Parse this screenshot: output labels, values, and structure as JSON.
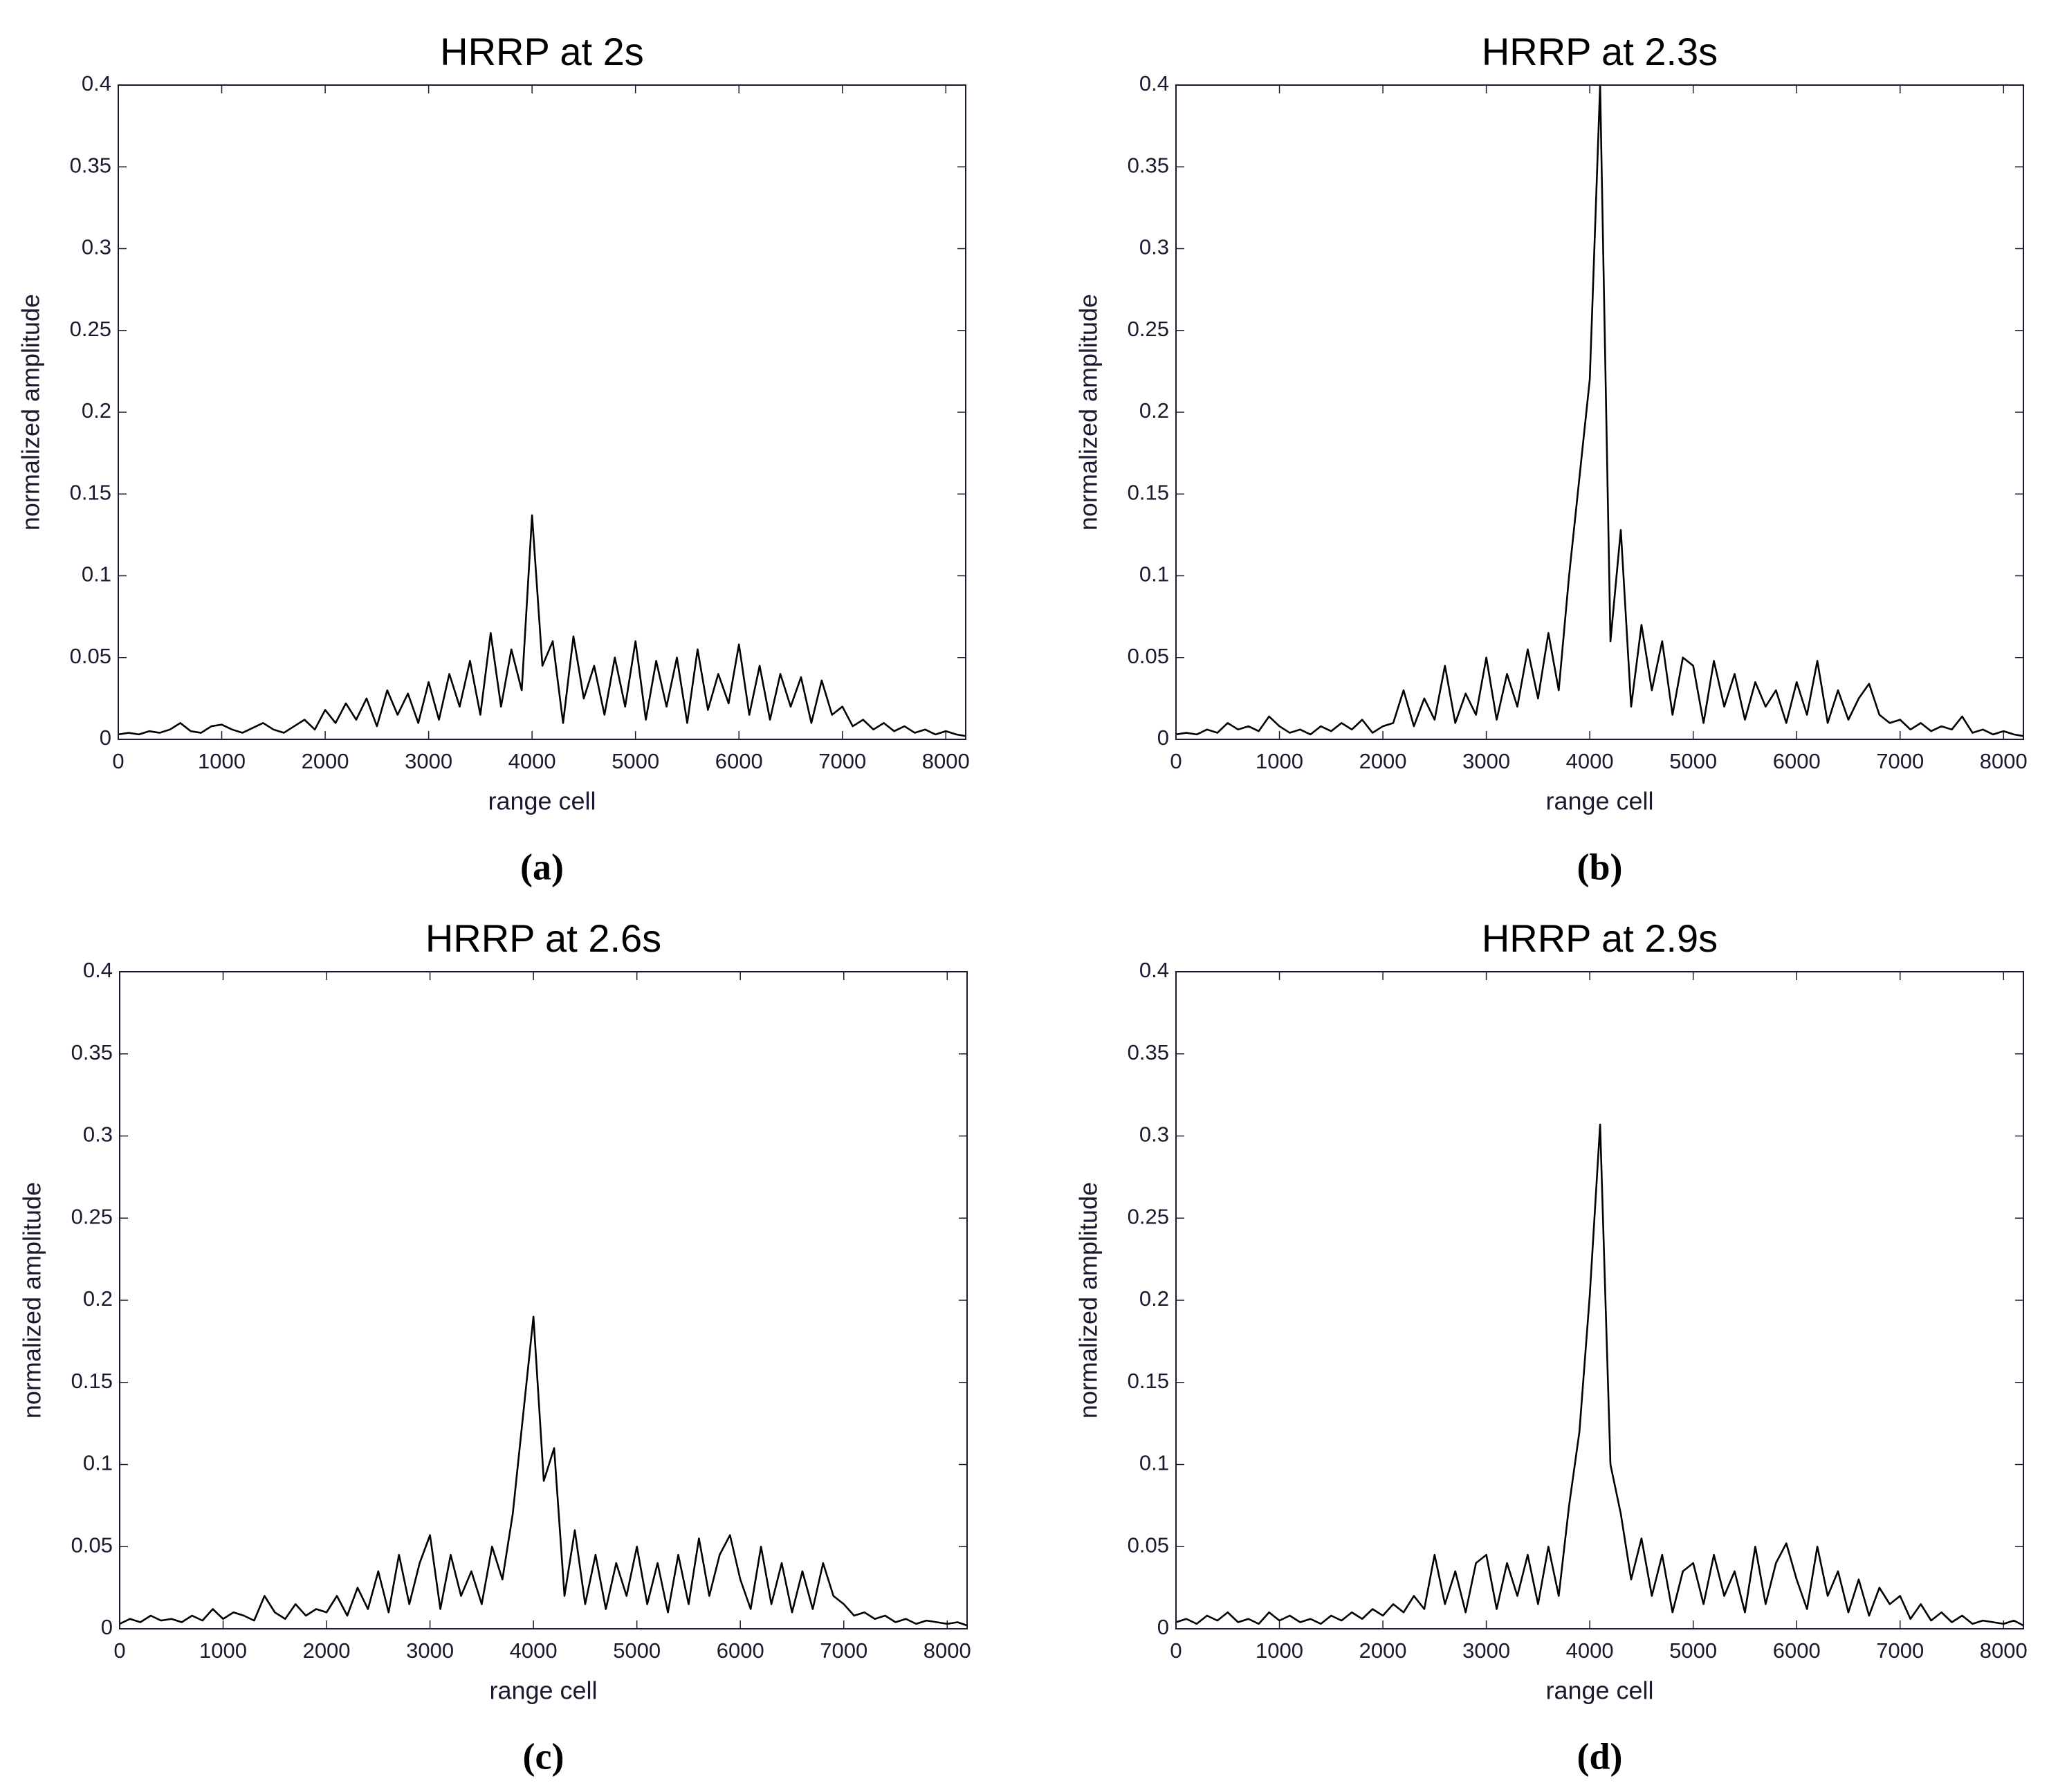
{
  "chart_data": [
    {
      "type": "line",
      "title": "HRRP at 2s",
      "caption": "(a)",
      "x_label": "range cell",
      "y_label": "normalized amplitude",
      "color": "#000000",
      "xlim": [
        0,
        8192
      ],
      "ylim": [
        0,
        0.4
      ],
      "xticks": [
        0,
        1000,
        2000,
        3000,
        4000,
        5000,
        6000,
        7000,
        8000
      ],
      "yticks": [
        0,
        0.05,
        0.1,
        0.15,
        0.2,
        0.25,
        0.3,
        0.35,
        0.4
      ],
      "x": [
        0,
        100,
        200,
        300,
        400,
        500,
        600,
        700,
        800,
        900,
        1000,
        1100,
        1200,
        1300,
        1400,
        1500,
        1600,
        1700,
        1800,
        1900,
        2000,
        2100,
        2200,
        2300,
        2400,
        2500,
        2600,
        2700,
        2800,
        2900,
        3000,
        3100,
        3200,
        3300,
        3400,
        3500,
        3600,
        3700,
        3800,
        3900,
        4000,
        4100,
        4200,
        4300,
        4400,
        4500,
        4600,
        4700,
        4800,
        4900,
        5000,
        5100,
        5200,
        5300,
        5400,
        5500,
        5600,
        5700,
        5800,
        5900,
        6000,
        6100,
        6200,
        6300,
        6400,
        6500,
        6600,
        6700,
        6800,
        6900,
        7000,
        7100,
        7200,
        7300,
        7400,
        7500,
        7600,
        7700,
        7800,
        7900,
        8000,
        8100,
        8192
      ],
      "values": [
        0.003,
        0.004,
        0.003,
        0.005,
        0.004,
        0.006,
        0.01,
        0.005,
        0.004,
        0.008,
        0.009,
        0.006,
        0.004,
        0.007,
        0.01,
        0.006,
        0.004,
        0.008,
        0.012,
        0.006,
        0.018,
        0.01,
        0.022,
        0.012,
        0.025,
        0.008,
        0.03,
        0.015,
        0.028,
        0.01,
        0.035,
        0.012,
        0.04,
        0.02,
        0.048,
        0.015,
        0.065,
        0.02,
        0.055,
        0.03,
        0.137,
        0.045,
        0.06,
        0.01,
        0.063,
        0.025,
        0.045,
        0.015,
        0.05,
        0.02,
        0.06,
        0.012,
        0.048,
        0.02,
        0.05,
        0.01,
        0.055,
        0.018,
        0.04,
        0.022,
        0.058,
        0.015,
        0.045,
        0.012,
        0.04,
        0.02,
        0.038,
        0.01,
        0.036,
        0.015,
        0.02,
        0.008,
        0.012,
        0.006,
        0.01,
        0.005,
        0.008,
        0.004,
        0.006,
        0.003,
        0.005,
        0.003,
        0.002
      ]
    },
    {
      "type": "line",
      "title": "HRRP at 2.3s",
      "caption": "(b)",
      "x_label": "range cell",
      "y_label": "normalized amplitude",
      "color": "#000000",
      "xlim": [
        0,
        8192
      ],
      "ylim": [
        0,
        0.4
      ],
      "xticks": [
        0,
        1000,
        2000,
        3000,
        4000,
        5000,
        6000,
        7000,
        8000
      ],
      "yticks": [
        0,
        0.05,
        0.1,
        0.15,
        0.2,
        0.25,
        0.3,
        0.35,
        0.4
      ],
      "x": [
        0,
        100,
        200,
        300,
        400,
        500,
        600,
        700,
        800,
        900,
        1000,
        1100,
        1200,
        1300,
        1400,
        1500,
        1600,
        1700,
        1800,
        1900,
        2000,
        2100,
        2200,
        2300,
        2400,
        2500,
        2600,
        2700,
        2800,
        2900,
        3000,
        3100,
        3200,
        3300,
        3400,
        3500,
        3600,
        3700,
        3800,
        3900,
        4000,
        4100,
        4200,
        4300,
        4400,
        4500,
        4600,
        4700,
        4800,
        4900,
        5000,
        5100,
        5200,
        5300,
        5400,
        5500,
        5600,
        5700,
        5800,
        5900,
        6000,
        6100,
        6200,
        6300,
        6400,
        6500,
        6600,
        6700,
        6800,
        6900,
        7000,
        7100,
        7200,
        7300,
        7400,
        7500,
        7600,
        7700,
        7800,
        7900,
        8000,
        8100,
        8192
      ],
      "values": [
        0.003,
        0.004,
        0.003,
        0.006,
        0.004,
        0.01,
        0.006,
        0.008,
        0.005,
        0.014,
        0.008,
        0.004,
        0.006,
        0.003,
        0.008,
        0.005,
        0.01,
        0.006,
        0.012,
        0.004,
        0.008,
        0.01,
        0.03,
        0.008,
        0.025,
        0.012,
        0.045,
        0.01,
        0.028,
        0.015,
        0.05,
        0.012,
        0.04,
        0.02,
        0.055,
        0.025,
        0.065,
        0.03,
        0.1,
        0.16,
        0.22,
        0.4,
        0.06,
        0.128,
        0.02,
        0.07,
        0.03,
        0.06,
        0.015,
        0.05,
        0.045,
        0.01,
        0.048,
        0.02,
        0.04,
        0.012,
        0.035,
        0.02,
        0.03,
        0.01,
        0.035,
        0.015,
        0.048,
        0.01,
        0.03,
        0.012,
        0.025,
        0.034,
        0.015,
        0.01,
        0.012,
        0.006,
        0.01,
        0.005,
        0.008,
        0.006,
        0.014,
        0.004,
        0.006,
        0.003,
        0.005,
        0.003,
        0.002
      ]
    },
    {
      "type": "line",
      "title": "HRRP at 2.6s",
      "caption": "(c)",
      "x_label": "range cell",
      "y_label": "normalized amplitude",
      "color": "#000000",
      "xlim": [
        0,
        8192
      ],
      "ylim": [
        0,
        0.4
      ],
      "xticks": [
        0,
        1000,
        2000,
        3000,
        4000,
        5000,
        6000,
        7000,
        8000
      ],
      "yticks": [
        0,
        0.05,
        0.1,
        0.15,
        0.2,
        0.25,
        0.3,
        0.35,
        0.4
      ],
      "x": [
        0,
        100,
        200,
        300,
        400,
        500,
        600,
        700,
        800,
        900,
        1000,
        1100,
        1200,
        1300,
        1400,
        1500,
        1600,
        1700,
        1800,
        1900,
        2000,
        2100,
        2200,
        2300,
        2400,
        2500,
        2600,
        2700,
        2800,
        2900,
        3000,
        3100,
        3200,
        3300,
        3400,
        3500,
        3600,
        3700,
        3800,
        3900,
        4000,
        4100,
        4200,
        4300,
        4400,
        4500,
        4600,
        4700,
        4800,
        4900,
        5000,
        5100,
        5200,
        5300,
        5400,
        5500,
        5600,
        5700,
        5800,
        5900,
        6000,
        6100,
        6200,
        6300,
        6400,
        6500,
        6600,
        6700,
        6800,
        6900,
        7000,
        7100,
        7200,
        7300,
        7400,
        7500,
        7600,
        7700,
        7800,
        7900,
        8000,
        8100,
        8192
      ],
      "values": [
        0.003,
        0.006,
        0.004,
        0.008,
        0.005,
        0.006,
        0.004,
        0.008,
        0.005,
        0.012,
        0.006,
        0.01,
        0.008,
        0.005,
        0.02,
        0.01,
        0.006,
        0.015,
        0.008,
        0.012,
        0.01,
        0.02,
        0.008,
        0.025,
        0.012,
        0.035,
        0.01,
        0.045,
        0.015,
        0.04,
        0.057,
        0.012,
        0.045,
        0.02,
        0.035,
        0.015,
        0.05,
        0.03,
        0.07,
        0.13,
        0.19,
        0.09,
        0.11,
        0.02,
        0.06,
        0.015,
        0.045,
        0.012,
        0.04,
        0.02,
        0.05,
        0.015,
        0.04,
        0.01,
        0.045,
        0.015,
        0.055,
        0.02,
        0.045,
        0.057,
        0.03,
        0.012,
        0.05,
        0.015,
        0.04,
        0.01,
        0.035,
        0.012,
        0.04,
        0.02,
        0.015,
        0.008,
        0.01,
        0.006,
        0.008,
        0.004,
        0.006,
        0.003,
        0.005,
        0.004,
        0.003,
        0.004,
        0.002
      ]
    },
    {
      "type": "line",
      "title": "HRRP at 2.9s",
      "caption": "(d)",
      "x_label": "range cell",
      "y_label": "normalized amplitude",
      "color": "#000000",
      "xlim": [
        0,
        8192
      ],
      "ylim": [
        0,
        0.4
      ],
      "xticks": [
        0,
        1000,
        2000,
        3000,
        4000,
        5000,
        6000,
        7000,
        8000
      ],
      "yticks": [
        0,
        0.05,
        0.1,
        0.15,
        0.2,
        0.25,
        0.3,
        0.35,
        0.4
      ],
      "x": [
        0,
        100,
        200,
        300,
        400,
        500,
        600,
        700,
        800,
        900,
        1000,
        1100,
        1200,
        1300,
        1400,
        1500,
        1600,
        1700,
        1800,
        1900,
        2000,
        2100,
        2200,
        2300,
        2400,
        2500,
        2600,
        2700,
        2800,
        2900,
        3000,
        3100,
        3200,
        3300,
        3400,
        3500,
        3600,
        3700,
        3800,
        3900,
        4000,
        4100,
        4200,
        4300,
        4400,
        4500,
        4600,
        4700,
        4800,
        4900,
        5000,
        5100,
        5200,
        5300,
        5400,
        5500,
        5600,
        5700,
        5800,
        5900,
        6000,
        6100,
        6200,
        6300,
        6400,
        6500,
        6600,
        6700,
        6800,
        6900,
        7000,
        7100,
        7200,
        7300,
        7400,
        7500,
        7600,
        7700,
        7800,
        7900,
        8000,
        8100,
        8192
      ],
      "values": [
        0.004,
        0.006,
        0.003,
        0.008,
        0.005,
        0.01,
        0.004,
        0.006,
        0.003,
        0.01,
        0.005,
        0.008,
        0.004,
        0.006,
        0.003,
        0.008,
        0.005,
        0.01,
        0.006,
        0.012,
        0.008,
        0.015,
        0.01,
        0.02,
        0.012,
        0.045,
        0.015,
        0.035,
        0.01,
        0.04,
        0.045,
        0.012,
        0.04,
        0.02,
        0.045,
        0.015,
        0.05,
        0.02,
        0.075,
        0.12,
        0.203,
        0.307,
        0.1,
        0.07,
        0.03,
        0.055,
        0.02,
        0.045,
        0.01,
        0.035,
        0.04,
        0.015,
        0.045,
        0.02,
        0.035,
        0.01,
        0.05,
        0.015,
        0.04,
        0.052,
        0.03,
        0.012,
        0.05,
        0.02,
        0.035,
        0.01,
        0.03,
        0.008,
        0.025,
        0.015,
        0.02,
        0.006,
        0.015,
        0.005,
        0.01,
        0.004,
        0.008,
        0.003,
        0.005,
        0.004,
        0.003,
        0.005,
        0.002
      ]
    }
  ]
}
